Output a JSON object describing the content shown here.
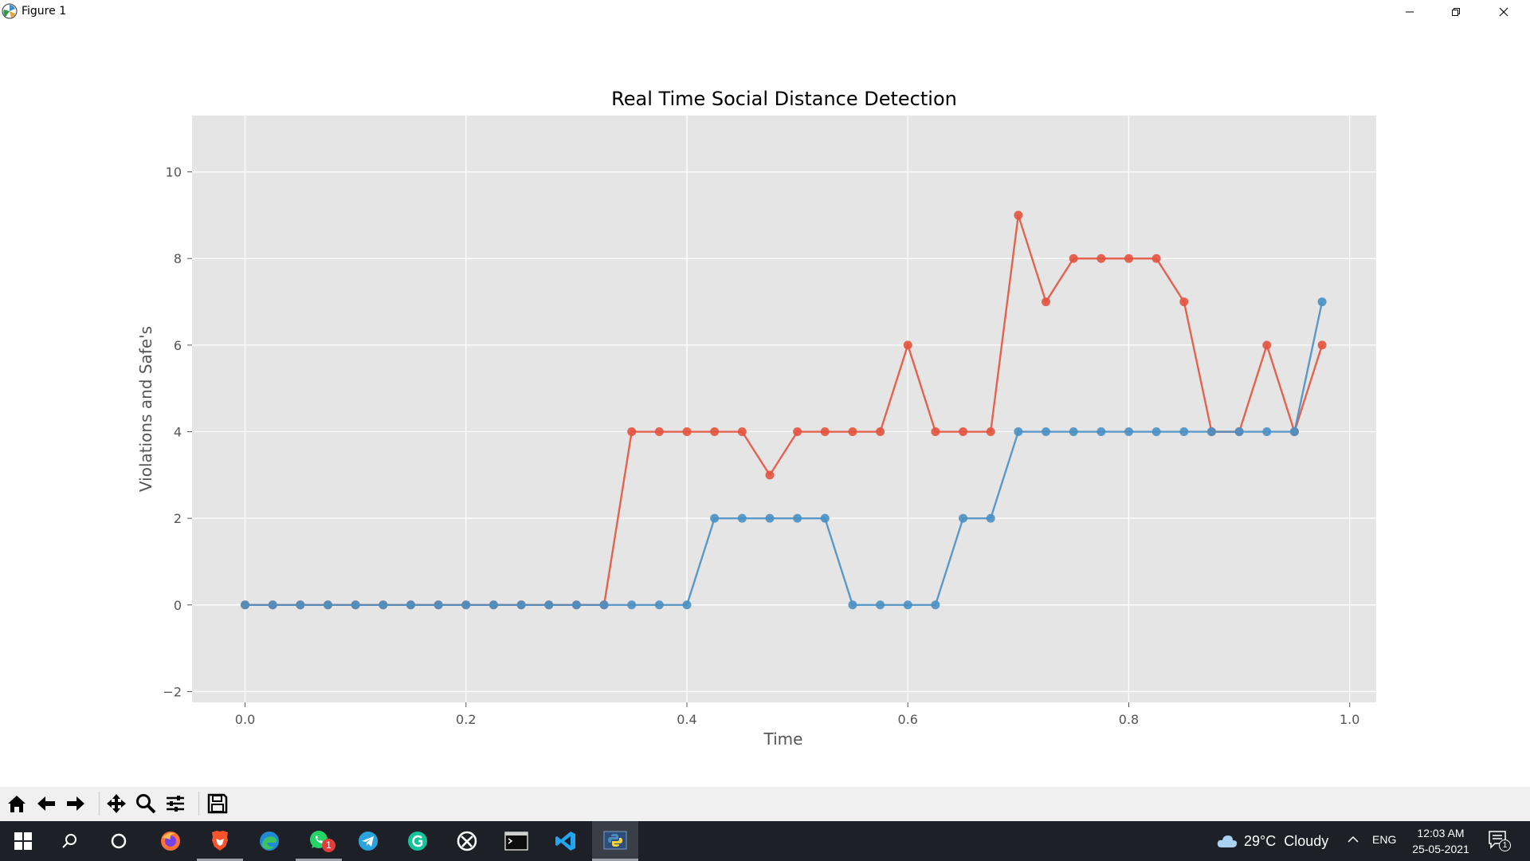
{
  "window": {
    "title": "Figure 1"
  },
  "toolbar": {
    "buttons": [
      "home-icon",
      "back-icon",
      "forward-icon",
      "pan-icon",
      "zoom-icon",
      "configure-icon",
      "save-icon"
    ]
  },
  "taskbar": {
    "apps": [
      "windows-start-icon",
      "search-icon",
      "cortana-icon",
      "firefox-icon",
      "brave-icon",
      "edge-icon",
      "whatsapp-icon",
      "telegram-icon",
      "grammarly-icon",
      "xbox-icon",
      "terminal-icon",
      "vscode-icon",
      "python-icon"
    ],
    "whatsapp_badge": "1",
    "weather": "29°C  Cloudy",
    "language": "ENG",
    "time": "12:03 AM",
    "date": "25-05-2021",
    "notification_badge": "1"
  },
  "colors": {
    "series_red": "#e2533f",
    "series_blue": "#4a90c2",
    "plot_bg": "#e5e5e5"
  },
  "chart_data": {
    "type": "line",
    "title": "Real Time Social Distance Detection",
    "xlabel": "Time",
    "ylabel": "Violations and Safe's",
    "xlim": [
      -0.048,
      1.024
    ],
    "ylim": [
      -2.25,
      11.3
    ],
    "xticks": [
      "0.0",
      "0.2",
      "0.4",
      "0.6",
      "0.8",
      "1.0"
    ],
    "xtick_values": [
      0.0,
      0.2,
      0.4,
      0.6,
      0.8,
      1.0
    ],
    "yticks": [
      "−2",
      "0",
      "2",
      "4",
      "6",
      "8",
      "10"
    ],
    "ytick_values": [
      -2,
      0,
      2,
      4,
      6,
      8,
      10
    ],
    "grid": true,
    "marker": "circle",
    "x": [
      0.0,
      0.025,
      0.05,
      0.075,
      0.1,
      0.125,
      0.15,
      0.175,
      0.2,
      0.225,
      0.25,
      0.275,
      0.3,
      0.325,
      0.35,
      0.375,
      0.4,
      0.425,
      0.45,
      0.475,
      0.5,
      0.525,
      0.55,
      0.575,
      0.6,
      0.625,
      0.65,
      0.675,
      0.7,
      0.725,
      0.75,
      0.775,
      0.8,
      0.825,
      0.85,
      0.875,
      0.9,
      0.925,
      0.95,
      0.975
    ],
    "series": [
      {
        "color": "#e2533f",
        "values": [
          0,
          0,
          0,
          0,
          0,
          0,
          0,
          0,
          0,
          0,
          0,
          0,
          0,
          0,
          4,
          4,
          4,
          4,
          4,
          3,
          4,
          4,
          4,
          4,
          6,
          4,
          4,
          4,
          9,
          7,
          8,
          8,
          8,
          8,
          7,
          4,
          4,
          6,
          4,
          6
        ]
      },
      {
        "color": "#4a90c2",
        "values": [
          0,
          0,
          0,
          0,
          0,
          0,
          0,
          0,
          0,
          0,
          0,
          0,
          0,
          0,
          0,
          0,
          0,
          2,
          2,
          2,
          2,
          2,
          0,
          0,
          0,
          0,
          2,
          2,
          4,
          4,
          4,
          4,
          4,
          4,
          4,
          4,
          4,
          4,
          4,
          7
        ]
      }
    ]
  }
}
